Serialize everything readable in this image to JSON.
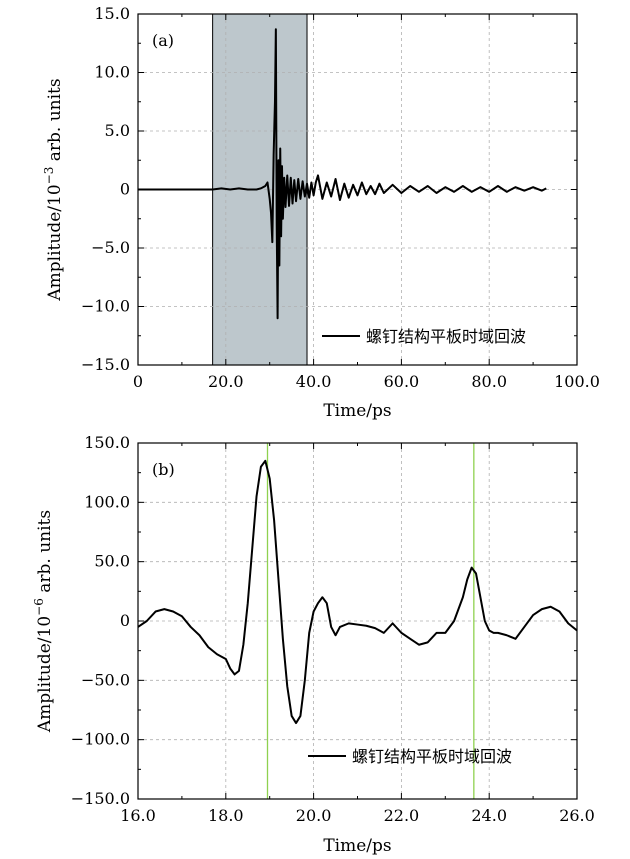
{
  "chart_data": [
    {
      "panel": "(a)",
      "type": "line",
      "xlabel": "Time/ps",
      "ylabel_prefix": "Amplitude/10",
      "ylabel_exp": "−3",
      "ylabel_suffix": " arb. units",
      "xlim": [
        0,
        100
      ],
      "ylim": [
        -15,
        15
      ],
      "xticks": [
        0,
        20,
        40,
        60,
        80,
        100
      ],
      "xtick_labels": [
        "0",
        "20.0",
        "40.0",
        "60.0",
        "80.0",
        "100.0"
      ],
      "yticks": [
        -15,
        -10,
        -5,
        0,
        5,
        10,
        15
      ],
      "ytick_labels": [
        "−15.0",
        "−10.0",
        "−5.0",
        "0",
        "5.0",
        "10.0",
        "15.0"
      ],
      "grid": true,
      "legend_position": "bottom-right",
      "shaded_region": [
        17,
        38.5
      ],
      "series": [
        {
          "name": "螺钉结构平板时域回波",
          "color": "#000000",
          "x": [
            0,
            5,
            10,
            15,
            17,
            19,
            21,
            23,
            25,
            27,
            28,
            29,
            29.5,
            30,
            30.3,
            30.6,
            30.9,
            31.2,
            31.4,
            31.6,
            31.8,
            32,
            32.2,
            32.4,
            32.6,
            32.8,
            33,
            33.3,
            33.6,
            34,
            34.4,
            34.8,
            35.2,
            35.6,
            36,
            36.5,
            37,
            37.5,
            38,
            38.5,
            39,
            39.5,
            40,
            40.5,
            41,
            42,
            43,
            44,
            45,
            46,
            47,
            48,
            49,
            50,
            51,
            52,
            53,
            54,
            55,
            56,
            58,
            60,
            62,
            64,
            66,
            68,
            70,
            72,
            74,
            76,
            78,
            80,
            82,
            84,
            86,
            88,
            90,
            92,
            93
          ],
          "y": [
            0,
            0,
            0,
            0,
            0,
            0.1,
            0,
            0.1,
            0,
            0,
            0.1,
            0.3,
            0.6,
            -0.8,
            -2,
            -4.5,
            3,
            7.5,
            13.7,
            -3,
            -11,
            2.5,
            -6.5,
            3.5,
            -4,
            2,
            -2.5,
            1,
            -1.5,
            1.2,
            -1.4,
            1,
            -1.2,
            0.8,
            -1,
            0.9,
            -0.8,
            0.7,
            -0.6,
            0.5,
            -0.7,
            0.6,
            -0.5,
            0.6,
            1.2,
            -0.8,
            0.6,
            -0.6,
            0.9,
            -0.9,
            0.5,
            -0.7,
            0.4,
            -0.5,
            0.6,
            -0.4,
            0.3,
            -0.4,
            0.5,
            -0.3,
            0.4,
            -0.3,
            0.3,
            -0.2,
            0.3,
            -0.3,
            0.2,
            -0.2,
            0.3,
            -0.2,
            0.2,
            -0.2,
            0.3,
            -0.2,
            0.2,
            -0.1,
            0.2,
            -0.1,
            0.1
          ]
        }
      ]
    },
    {
      "panel": "(b)",
      "type": "line",
      "xlabel": "Time/ps",
      "ylabel_prefix": "Amplitude/10",
      "ylabel_exp": "−6",
      "ylabel_suffix": " arb. units",
      "xlim": [
        16,
        26
      ],
      "ylim": [
        -150,
        150
      ],
      "xticks": [
        16,
        18,
        20,
        22,
        24,
        26
      ],
      "xtick_labels": [
        "16.0",
        "18.0",
        "20.0",
        "22.0",
        "24.0",
        "26.0"
      ],
      "yticks": [
        -150,
        -100,
        -50,
        0,
        50,
        100,
        150
      ],
      "ytick_labels": [
        "−150.0",
        "−100.0",
        "−50.0",
        "0",
        "50.0",
        "100.0",
        "150.0"
      ],
      "grid": true,
      "legend_position": "bottom-right",
      "vertical_lines": [
        18.95,
        23.65
      ],
      "vertical_line_color": "#8fd14f",
      "series": [
        {
          "name": "螺钉结构平板时域回波",
          "color": "#000000",
          "x": [
            16,
            16.2,
            16.4,
            16.6,
            16.8,
            17,
            17.2,
            17.4,
            17.6,
            17.8,
            18,
            18.1,
            18.2,
            18.3,
            18.4,
            18.5,
            18.6,
            18.7,
            18.8,
            18.9,
            19,
            19.1,
            19.2,
            19.3,
            19.4,
            19.5,
            19.6,
            19.7,
            19.8,
            19.9,
            20,
            20.1,
            20.2,
            20.3,
            20.4,
            20.5,
            20.6,
            20.8,
            21,
            21.2,
            21.4,
            21.6,
            21.8,
            22,
            22.2,
            22.4,
            22.6,
            22.8,
            23,
            23.2,
            23.4,
            23.5,
            23.6,
            23.7,
            23.8,
            23.9,
            24,
            24.1,
            24.2,
            24.4,
            24.6,
            24.8,
            25,
            25.2,
            25.4,
            25.6,
            25.8,
            26
          ],
          "y": [
            -5,
            0,
            8,
            10,
            8,
            4,
            -5,
            -12,
            -22,
            -28,
            -32,
            -40,
            -45,
            -42,
            -20,
            15,
            60,
            105,
            130,
            135,
            120,
            85,
            35,
            -15,
            -55,
            -80,
            -86,
            -80,
            -50,
            -10,
            8,
            15,
            20,
            15,
            -5,
            -12,
            -5,
            -2,
            -3,
            -4,
            -6,
            -10,
            -2,
            -10,
            -15,
            -20,
            -18,
            -10,
            -10,
            0,
            20,
            35,
            45,
            40,
            20,
            0,
            -8,
            -10,
            -10,
            -12,
            -15,
            -5,
            5,
            10,
            12,
            8,
            -2,
            -8
          ]
        }
      ]
    }
  ]
}
